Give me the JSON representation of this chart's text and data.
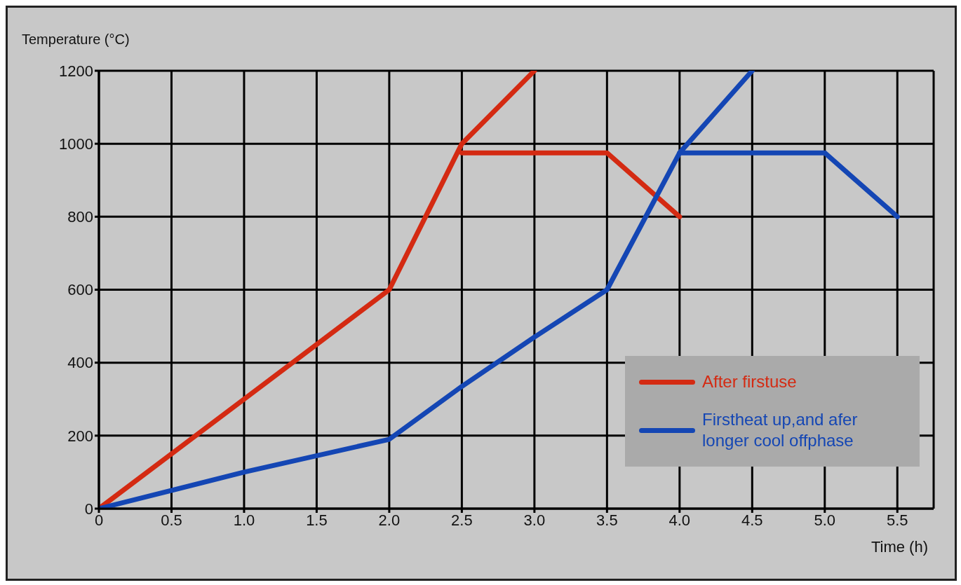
{
  "chart_data": {
    "type": "line",
    "ylabel": "Temperature (°C)",
    "xlabel": "Time (h)",
    "series": [
      {
        "name": "After firstuse",
        "color": "#d42a12",
        "x": [
          0,
          1,
          2,
          2.5,
          3
        ],
        "values": [
          0,
          300,
          600,
          1000,
          1200
        ]
      },
      {
        "color": "#d42a12",
        "x": [
          2.5,
          3.5,
          4
        ],
        "values": [
          975,
          975,
          800
        ]
      },
      {
        "name": "Firstheat up,and afer longer cool offphase",
        "color": "#1446b4",
        "x": [
          0,
          1,
          2,
          2.5,
          3,
          3.5,
          4,
          4.5
        ],
        "values": [
          0,
          100,
          190,
          335,
          470,
          600,
          975,
          1200
        ]
      },
      {
        "color": "#1446b4",
        "x": [
          4,
          5,
          5.5
        ],
        "values": [
          975,
          975,
          800
        ]
      }
    ],
    "xlim": [
      0,
      5.75
    ],
    "xticks": [
      0,
      0.5,
      {
        "value": 1,
        "label": "1.0"
      },
      1.5,
      {
        "value": 2,
        "label": "2.0"
      },
      2.5,
      {
        "value": 3,
        "label": "3.0"
      },
      3.5,
      {
        "value": 4,
        "label": "4.0"
      },
      4.5,
      {
        "value": 5,
        "label": "5.0"
      },
      5.5
    ],
    "ylim": [
      0,
      1200
    ],
    "yticks": [
      0,
      200,
      400,
      600,
      800,
      1000,
      1200
    ],
    "grid": true,
    "legend": "bottom right",
    "marker": "none",
    "line_style": "solid"
  }
}
